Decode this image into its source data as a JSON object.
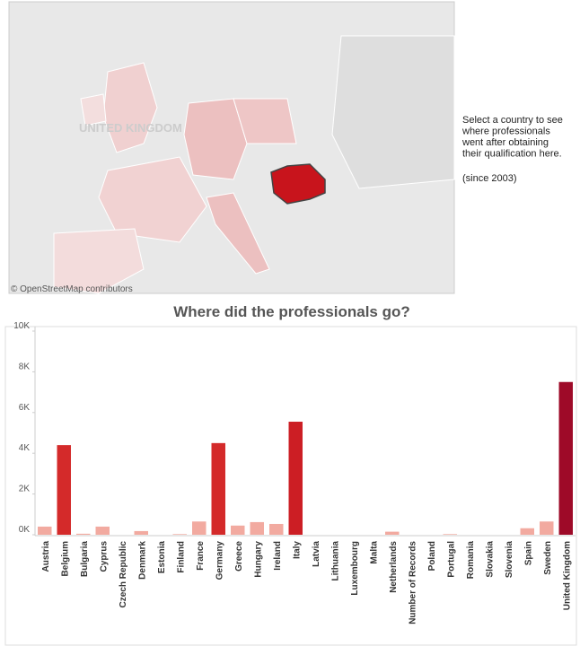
{
  "map": {
    "credit": "© OpenStreetMap contributors",
    "label": "UNITED KINGDOM"
  },
  "sidebar": {
    "lines": [
      "Select a country to see",
      "where professionals",
      "went after obtaining",
      "their qualification here."
    ],
    "note": "(since 2003)"
  },
  "chart_data": {
    "type": "bar",
    "title": "Where did the professionals go?",
    "categories": [
      "Austria",
      "Belgium",
      "Bulgaria",
      "Cyprus",
      "Czech Republic",
      "Denmark",
      "Estonia",
      "Finland",
      "France",
      "Germany",
      "Greece",
      "Hungary",
      "Ireland",
      "Italy",
      "Latvia",
      "Lithuania",
      "Luxembourg",
      "Malta",
      "Netherlands",
      "Number of Records",
      "Poland",
      "Portugal",
      "Romania",
      "Slovakia",
      "Slovenia",
      "Spain",
      "Sweden",
      "United Kingdom"
    ],
    "values": [
      400,
      4400,
      50,
      400,
      0,
      180,
      0,
      30,
      650,
      4500,
      450,
      620,
      530,
      5550,
      0,
      0,
      0,
      0,
      150,
      0,
      0,
      30,
      0,
      0,
      0,
      320,
      650,
      7500
    ],
    "colors": [
      "#f2aaa0",
      "#d42a2a",
      "#f2aaa0",
      "#f2aaa0",
      "#f2aaa0",
      "#f2aaa0",
      "#f2aaa0",
      "#f2aaa0",
      "#f2aaa0",
      "#d42a2a",
      "#f2aaa0",
      "#f2aaa0",
      "#f2aaa0",
      "#cc1e24",
      "#f2aaa0",
      "#f2aaa0",
      "#f2aaa0",
      "#f2aaa0",
      "#f2aaa0",
      "#f2aaa0",
      "#f2aaa0",
      "#f2aaa0",
      "#f2aaa0",
      "#f2aaa0",
      "#f2aaa0",
      "#f2aaa0",
      "#f2aaa0",
      "#9e0a28"
    ],
    "ylim": [
      0,
      10000
    ],
    "yticks": [
      {
        "value": 0,
        "label": "0K"
      },
      {
        "value": 2000,
        "label": "2K"
      },
      {
        "value": 4000,
        "label": "4K"
      },
      {
        "value": 6000,
        "label": "6K"
      },
      {
        "value": 8000,
        "label": "8K"
      },
      {
        "value": 10000,
        "label": "10K"
      }
    ],
    "grid": false
  }
}
